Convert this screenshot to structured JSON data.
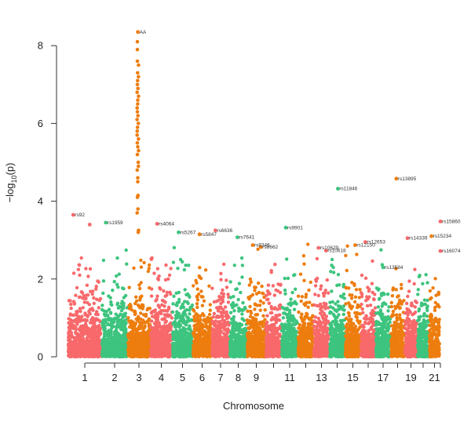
{
  "chart_data": {
    "type": "scatter",
    "subtype": "manhattan",
    "xlabel": "Chromosome",
    "ylabel": "−log10(p)",
    "ylabel_main": "−log",
    "ylabel_sub": "10",
    "ylabel_arg": "(p)",
    "ylim": [
      0,
      8.4
    ],
    "yticks": [
      0,
      2,
      4,
      6,
      8
    ],
    "grid": false,
    "legend": "none",
    "palette": [
      "#f8696b",
      "#3dc47e",
      "#ed7d0e"
    ],
    "chromosomes": [
      "1",
      "2",
      "3",
      "4",
      "5",
      "6",
      "7",
      "8",
      "9",
      "10",
      "11",
      "12",
      "13",
      "14",
      "15",
      "16",
      "17",
      "18",
      "19",
      "20",
      "21",
      "22"
    ],
    "xtick_labels": [
      "1",
      "2",
      "3",
      "4",
      "5",
      "6",
      "7",
      "8",
      "9",
      "11",
      "13",
      "15",
      "17",
      "19",
      "21"
    ],
    "chromosome_max_p": [
      2.9,
      2.8,
      8.4,
      2.6,
      2.9,
      2.8,
      2.9,
      2.7,
      2.8,
      2.7,
      2.6,
      2.9,
      2.7,
      2.6,
      2.9,
      2.7,
      2.8,
      2.9,
      2.7,
      2.4,
      2.5,
      2.3
    ],
    "top_hits": [
      {
        "chr": "1",
        "pos": 0.15,
        "p": 3.65,
        "label": "rs92"
      },
      {
        "chr": "1",
        "pos": 0.65,
        "p": 3.4,
        "label": ""
      },
      {
        "chr": "2",
        "pos": 0.15,
        "p": 3.45,
        "label": "rs1959"
      },
      {
        "chr": "3",
        "pos": 0.45,
        "p": 8.35,
        "label": "AA"
      },
      {
        "chr": "4",
        "pos": 0.3,
        "p": 3.42,
        "label": "rs4064"
      },
      {
        "chr": "5",
        "pos": 0.3,
        "p": 3.2,
        "label": "rs5267"
      },
      {
        "chr": "6",
        "pos": 0.35,
        "p": 3.15,
        "label": "rs5847"
      },
      {
        "chr": "7",
        "pos": 0.2,
        "p": 3.25,
        "label": "rs6636"
      },
      {
        "chr": "8",
        "pos": 0.45,
        "p": 3.07,
        "label": "rs7641"
      },
      {
        "chr": "9",
        "pos": 0.3,
        "p": 2.87,
        "label": "rs8346"
      },
      {
        "chr": "9",
        "pos": 0.75,
        "p": 2.82,
        "label": "rs8662"
      },
      {
        "chr": "11",
        "pos": 0.25,
        "p": 3.32,
        "label": "rs9901"
      },
      {
        "chr": "13",
        "pos": 0.3,
        "p": 2.8,
        "label": "rs10629"
      },
      {
        "chr": "13",
        "pos": 0.8,
        "p": 2.73,
        "label": "rs10618"
      },
      {
        "chr": "14",
        "pos": 0.55,
        "p": 4.32,
        "label": "rs11846"
      },
      {
        "chr": "15",
        "pos": 0.65,
        "p": 2.87,
        "label": "rs12150"
      },
      {
        "chr": "16",
        "pos": 0.3,
        "p": 2.95,
        "label": "rs12653"
      },
      {
        "chr": "17",
        "pos": 0.5,
        "p": 2.3,
        "label": "rs13584"
      },
      {
        "chr": "18",
        "pos": 0.4,
        "p": 4.58,
        "label": "rs13895"
      },
      {
        "chr": "19",
        "pos": 0.2,
        "p": 3.05,
        "label": "rs14339"
      },
      {
        "chr": "21",
        "pos": 0.2,
        "p": 3.1,
        "label": "rs15234"
      },
      {
        "chr": "22",
        "pos": 0.3,
        "p": 3.48,
        "label": "rs15860"
      },
      {
        "chr": "22",
        "pos": 0.55,
        "p": 2.72,
        "label": "rs16074"
      }
    ],
    "chr3_peak_values": [
      3.2,
      3.25,
      3.7,
      3.8,
      4.1,
      4.15,
      4.5,
      4.6,
      4.8,
      4.9,
      5.0,
      5.2,
      5.3,
      5.4,
      5.5,
      5.6,
      5.7,
      5.8,
      5.9,
      6.0,
      6.1,
      6.2,
      6.3,
      6.4,
      6.5,
      6.6,
      6.7,
      6.8,
      6.9,
      7.0,
      7.1,
      7.2,
      7.3,
      7.5,
      7.6,
      7.9,
      8.1
    ]
  }
}
